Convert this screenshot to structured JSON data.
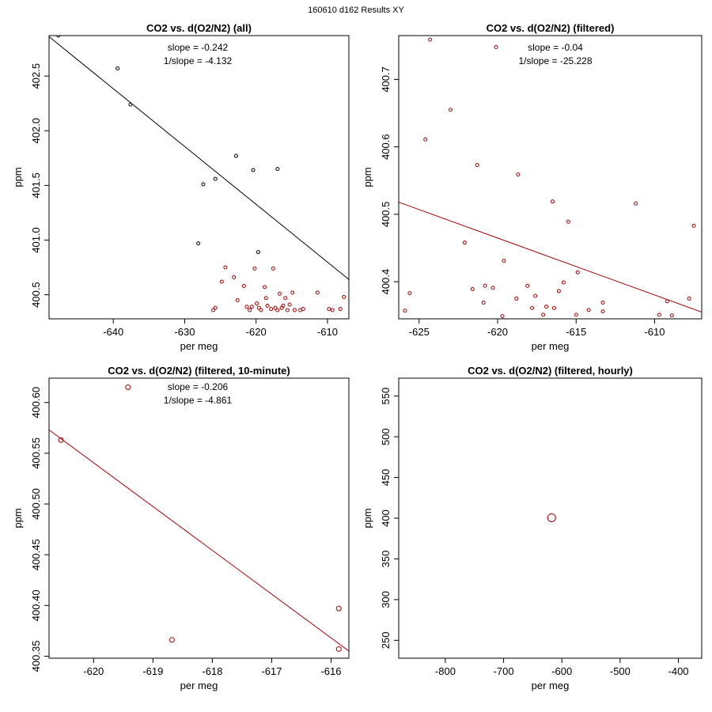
{
  "figure": {
    "title": "160610   d162   Results XY"
  },
  "chart_data": [
    {
      "type": "scatter",
      "title": "CO2 vs. d(O2/N2) (all)",
      "xlabel": "per meg",
      "ylabel": "ppm",
      "xlim": [
        -649,
        -607
      ],
      "ylim": [
        400.28,
        402.87
      ],
      "xticks": [
        -640,
        -630,
        -620,
        -610
      ],
      "yticks": [
        400.5,
        401.0,
        401.5,
        402.0,
        402.5
      ],
      "ytick_labels": [
        "400.5",
        "401.0",
        "401.5",
        "402.0",
        "402.5"
      ],
      "series": [
        {
          "name": "all",
          "color": "#000000",
          "points": [
            [
              -647.7,
              402.87
            ],
            [
              -639.4,
              402.57
            ],
            [
              -637.6,
              402.24
            ],
            [
              -628.1,
              400.97
            ],
            [
              -627.4,
              401.51
            ],
            [
              -625.7,
              401.56
            ],
            [
              -622.8,
              401.77
            ],
            [
              -620.4,
              401.64
            ],
            [
              -619.7,
              400.89
            ],
            [
              -617.0,
              401.65
            ]
          ]
        },
        {
          "name": "filtered",
          "color": "#a00000",
          "points": [
            [
              -626.0,
              400.36
            ],
            [
              -625.7,
              400.38
            ],
            [
              -624.8,
              400.62
            ],
            [
              -624.3,
              400.75
            ],
            [
              -623.1,
              400.66
            ],
            [
              -622.6,
              400.45
            ],
            [
              -621.7,
              400.58
            ],
            [
              -621.3,
              400.39
            ],
            [
              -620.9,
              400.36
            ],
            [
              -620.6,
              400.39
            ],
            [
              -620.2,
              400.74
            ],
            [
              -619.9,
              400.42
            ],
            [
              -619.6,
              400.38
            ],
            [
              -619.3,
              400.36
            ],
            [
              -618.8,
              400.57
            ],
            [
              -618.6,
              400.47
            ],
            [
              -618.4,
              400.4
            ],
            [
              -617.9,
              400.37
            ],
            [
              -617.6,
              400.74
            ],
            [
              -617.3,
              400.38
            ],
            [
              -617.0,
              400.36
            ],
            [
              -616.7,
              400.51
            ],
            [
              -616.4,
              400.38
            ],
            [
              -616.2,
              400.4
            ],
            [
              -615.9,
              400.47
            ],
            [
              -615.6,
              400.36
            ],
            [
              -615.3,
              400.41
            ],
            [
              -614.9,
              400.52
            ],
            [
              -614.6,
              400.36
            ],
            [
              -613.8,
              400.36
            ],
            [
              -613.4,
              400.37
            ],
            [
              -611.4,
              400.52
            ],
            [
              -609.8,
              400.37
            ],
            [
              -609.3,
              400.36
            ],
            [
              -608.2,
              400.37
            ],
            [
              -607.7,
              400.48
            ]
          ]
        }
      ],
      "fit": {
        "color": "#000000",
        "x": [
          -649,
          -607
        ],
        "y": [
          402.86,
          400.64
        ]
      },
      "annotations": [
        {
          "text": "slope = -0.242",
          "color": "#000000"
        },
        {
          "text": "1/slope = -4.132",
          "color": "#000000"
        }
      ]
    },
    {
      "type": "scatter",
      "title": "CO2 vs. d(O2/N2) (filtered)",
      "xlabel": "per meg",
      "ylabel": "ppm",
      "xlim": [
        -626.3,
        -607.0
      ],
      "ylim": [
        400.345,
        400.765
      ],
      "xticks": [
        -625,
        -620,
        -615,
        -610
      ],
      "yticks": [
        400.4,
        400.5,
        400.6,
        400.7
      ],
      "ytick_labels": [
        "400.4",
        "400.5",
        "400.6",
        "400.7"
      ],
      "series": [
        {
          "name": "filtered",
          "color": "#a00000",
          "points": [
            [
              -625.9,
              400.357
            ],
            [
              -625.6,
              400.383
            ],
            [
              -624.6,
              400.611
            ],
            [
              -624.3,
              400.759
            ],
            [
              -623.0,
              400.655
            ],
            [
              -622.1,
              400.458
            ],
            [
              -621.6,
              400.389
            ],
            [
              -621.3,
              400.573
            ],
            [
              -620.9,
              400.369
            ],
            [
              -620.8,
              400.394
            ],
            [
              -620.3,
              400.391
            ],
            [
              -620.1,
              400.748
            ],
            [
              -619.7,
              400.349
            ],
            [
              -619.6,
              400.431
            ],
            [
              -618.8,
              400.375
            ],
            [
              -618.7,
              400.559
            ],
            [
              -618.1,
              400.394
            ],
            [
              -617.8,
              400.361
            ],
            [
              -617.6,
              400.379
            ],
            [
              -617.1,
              400.351
            ],
            [
              -616.9,
              400.363
            ],
            [
              -616.5,
              400.519
            ],
            [
              -616.4,
              400.361
            ],
            [
              -616.1,
              400.386
            ],
            [
              -615.8,
              400.399
            ],
            [
              -615.5,
              400.489
            ],
            [
              -615.0,
              400.351
            ],
            [
              -614.9,
              400.414
            ],
            [
              -614.2,
              400.358
            ],
            [
              -613.3,
              400.369
            ],
            [
              -613.3,
              400.356
            ],
            [
              -611.2,
              400.516
            ],
            [
              -609.7,
              400.351
            ],
            [
              -609.2,
              400.371
            ],
            [
              -608.9,
              400.35
            ],
            [
              -607.8,
              400.375
            ],
            [
              -607.5,
              400.483
            ]
          ]
        }
      ],
      "fit": {
        "color": "#a00000",
        "x": [
          -626.3,
          -607.0
        ],
        "y": [
          400.518,
          400.355
        ]
      },
      "annotations": [
        {
          "text": "slope = -0.04",
          "color": "#a00000"
        },
        {
          "text": "1/slope = -25.228",
          "color": "#a00000"
        }
      ]
    },
    {
      "type": "scatter",
      "title": "CO2 vs. d(O2/N2) (filtered, 10-minute)",
      "xlabel": "per meg",
      "ylabel": "ppm",
      "xlim": [
        -620.75,
        -615.7
      ],
      "ylim": [
        400.348,
        400.624
      ],
      "xticks": [
        -620,
        -619,
        -618,
        -617,
        -616
      ],
      "yticks": [
        400.35,
        400.4,
        400.45,
        400.5,
        400.55,
        400.6
      ],
      "ytick_labels": [
        "400.35",
        "400.40",
        "400.45",
        "400.50",
        "400.55",
        "400.60"
      ],
      "series": [
        {
          "name": "10-minute",
          "color": "#a00000",
          "points": [
            [
              -620.55,
              400.563
            ],
            [
              -619.42,
              400.615
            ],
            [
              -618.68,
              400.366
            ],
            [
              -615.87,
              400.357
            ],
            [
              -615.87,
              400.397
            ]
          ]
        }
      ],
      "fit": {
        "color": "#a00000",
        "x": [
          -620.75,
          -615.7
        ],
        "y": [
          400.573,
          400.355
        ]
      },
      "annotations": [
        {
          "text": "slope = -0.206",
          "color": "#a00000"
        },
        {
          "text": "1/slope = -4.861",
          "color": "#a00000"
        }
      ]
    },
    {
      "type": "scatter",
      "title": "CO2 vs. d(O2/N2) (filtered, hourly)",
      "xlabel": "per meg",
      "ylabel": "ppm",
      "xlim": [
        -880,
        -360
      ],
      "ylim": [
        228,
        572
      ],
      "xticks": [
        -800,
        -700,
        -600,
        -500,
        -400
      ],
      "yticks": [
        250,
        300,
        350,
        400,
        450,
        500,
        550
      ],
      "ytick_labels": [
        "250",
        "300",
        "350",
        "400",
        "450",
        "500",
        "550"
      ],
      "series": [
        {
          "name": "hourly",
          "color": "#a00000",
          "points": [
            [
              -617.6,
              400.5
            ]
          ]
        }
      ],
      "annotations": []
    }
  ]
}
